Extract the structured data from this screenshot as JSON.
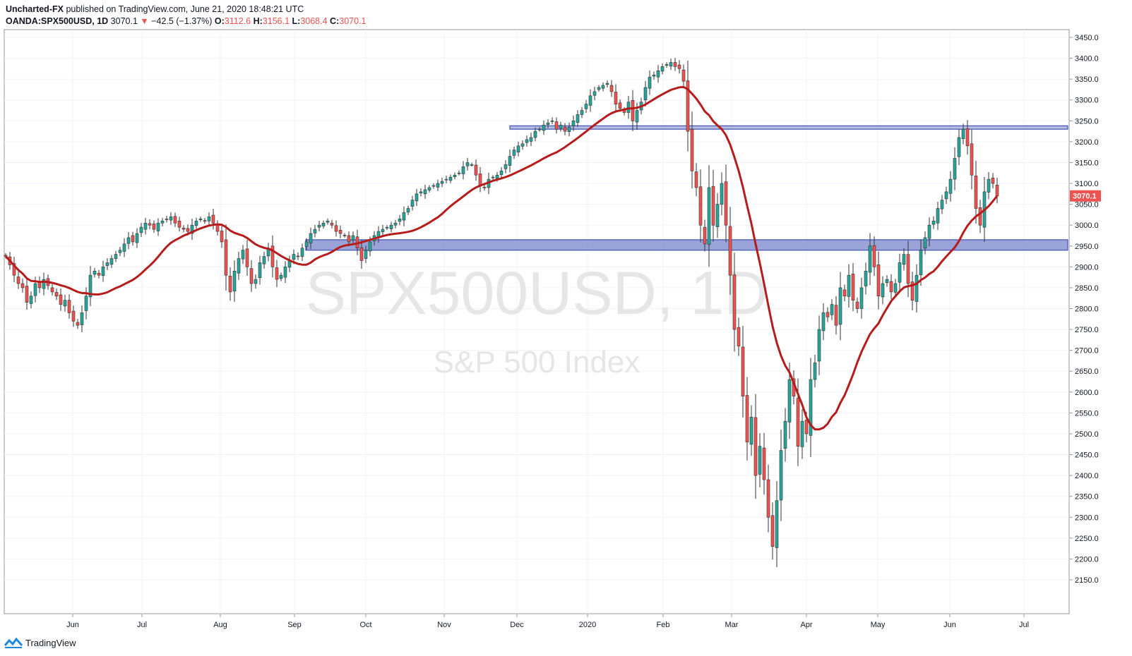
{
  "header": {
    "author": "Uncharted-FX",
    "published_text": "published on TradingView.com, June 21, 2020 18:48:21 UTC"
  },
  "symbol_line": {
    "symbol": "OANDA:SPX500USD, 1D",
    "last": "3070.1",
    "change": "−42.5 (−1.37%)",
    "o_label": "O:",
    "o": "3112.6",
    "h_label": "H:",
    "h": "3156.1",
    "l_label": "L:",
    "l": "3068.4",
    "c_label": "C:",
    "c": "3070.1"
  },
  "watermark": {
    "symbol": "SPX500USD, 1D",
    "name": "S&P 500 Index"
  },
  "footer": {
    "brand": "TradingView"
  },
  "colors": {
    "up": "#26a69a",
    "down": "#ef5350",
    "ma": "#b71c1c",
    "zone": "#3f51b5",
    "zone_fill": "#7986cb"
  },
  "chart_data": {
    "type": "candlestick",
    "title": "",
    "y_ticks": [
      3450,
      3400,
      3350,
      3300,
      3250,
      3200,
      3150,
      3100,
      3050,
      3000,
      2950,
      2900,
      2850,
      2800,
      2750,
      2700,
      2650,
      2600,
      2550,
      2500,
      2450,
      2400,
      2350,
      2300,
      2250,
      2200,
      2150
    ],
    "ylim": [
      2100,
      3460
    ],
    "x_labels": [
      "Jun",
      "Jul",
      "Aug",
      "Sep",
      "Oct",
      "Nov",
      "Dec",
      "2020",
      "Feb",
      "Mar",
      "Apr",
      "May",
      "Jun",
      "Jul"
    ],
    "last_price_label": "3070.1",
    "series_close": [
      2925,
      2905,
      2880,
      2860,
      2850,
      2815,
      2830,
      2860,
      2850,
      2870,
      2855,
      2840,
      2830,
      2810,
      2820,
      2790,
      2770,
      2760,
      2790,
      2830,
      2880,
      2890,
      2880,
      2900,
      2910,
      2920,
      2930,
      2940,
      2955,
      2970,
      2960,
      2980,
      2995,
      3005,
      3000,
      2990,
      3005,
      3010,
      3015,
      3020,
      3005,
      2995,
      2990,
      2985,
      3000,
      3010,
      3015,
      3010,
      3020,
      3005,
      2985,
      2960,
      2880,
      2840,
      2890,
      2920,
      2940,
      2900,
      2860,
      2870,
      2910,
      2925,
      2945,
      2900,
      2870,
      2880,
      2900,
      2915,
      2930,
      2925,
      2945,
      2960,
      2980,
      2990,
      3000,
      3005,
      3010,
      3000,
      2985,
      2980,
      2975,
      2960,
      2975,
      2945,
      2915,
      2940,
      2960,
      2975,
      2985,
      2990,
      2995,
      3000,
      3005,
      3015,
      3030,
      3040,
      3060,
      3075,
      3080,
      3085,
      3090,
      3095,
      3100,
      3105,
      3110,
      3115,
      3120,
      3125,
      3140,
      3150,
      3145,
      3120,
      3095,
      3090,
      3110,
      3115,
      3120,
      3130,
      3145,
      3165,
      3180,
      3190,
      3195,
      3205,
      3210,
      3225,
      3230,
      3240,
      3245,
      3250,
      3230,
      3240,
      3225,
      3235,
      3250,
      3265,
      3275,
      3290,
      3310,
      3320,
      3330,
      3335,
      3340,
      3320,
      3290,
      3280,
      3270,
      3295,
      3250,
      3275,
      3295,
      3330,
      3355,
      3360,
      3370,
      3380,
      3385,
      3390,
      3380,
      3375,
      3345,
      3225,
      3130,
      3090,
      3000,
      2955,
      3090,
      3000,
      3050,
      3100,
      3000,
      2880,
      2750,
      2710,
      2590,
      2480,
      2540,
      2400,
      2470,
      2390,
      2300,
      2230,
      2340,
      2460,
      2530,
      2630,
      2590,
      2470,
      2530,
      2500,
      2630,
      2670,
      2750,
      2790,
      2780,
      2810,
      2760,
      2850,
      2830,
      2880,
      2820,
      2800,
      2850,
      2890,
      2950,
      2900,
      2830,
      2860,
      2870,
      2840,
      2860,
      2910,
      2930,
      2860,
      2820,
      2880,
      2940,
      2970,
      3000,
      3010,
      3040,
      3060,
      3080,
      3110,
      3160,
      3210,
      3230,
      3190,
      3120,
      3040,
      3000,
      3080,
      3110,
      3100,
      3070
    ],
    "resistance_zone": [
      3230,
      3238
    ],
    "support_zone": [
      2940,
      2965
    ],
    "ma_period": 20
  }
}
